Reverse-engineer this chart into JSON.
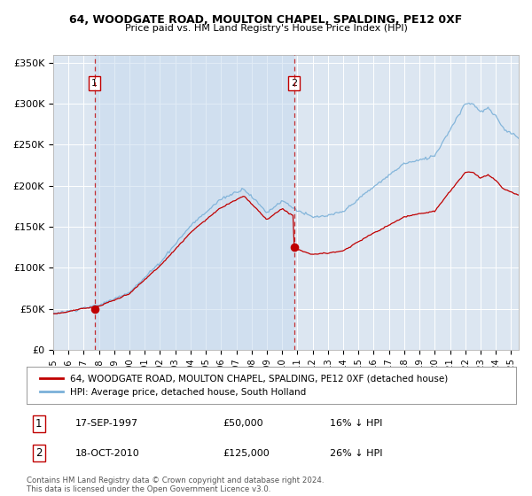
{
  "title": "64, WOODGATE ROAD, MOULTON CHAPEL, SPALDING, PE12 0XF",
  "subtitle": "Price paid vs. HM Land Registry's House Price Index (HPI)",
  "ylim": [
    0,
    360000
  ],
  "yticks": [
    0,
    50000,
    100000,
    150000,
    200000,
    250000,
    300000,
    350000
  ],
  "ytick_labels": [
    "£0",
    "£50K",
    "£100K",
    "£150K",
    "£200K",
    "£250K",
    "£300K",
    "£350K"
  ],
  "background_color": "#ffffff",
  "plot_bg_color": "#dce6f1",
  "grid_color": "#ffffff",
  "hpi_color": "#7ab0d8",
  "price_color": "#c00000",
  "sale1_t": 1997.708,
  "sale1_price": 50000,
  "sale2_t": 2010.792,
  "sale2_price": 125000,
  "legend_label1": "64, WOODGATE ROAD, MOULTON CHAPEL, SPALDING, PE12 0XF (detached house)",
  "legend_label2": "HPI: Average price, detached house, South Holland",
  "footer": "Contains HM Land Registry data © Crown copyright and database right 2024.\nThis data is licensed under the Open Government Licence v3.0.",
  "xstart": 1995.0,
  "xend": 2025.5
}
